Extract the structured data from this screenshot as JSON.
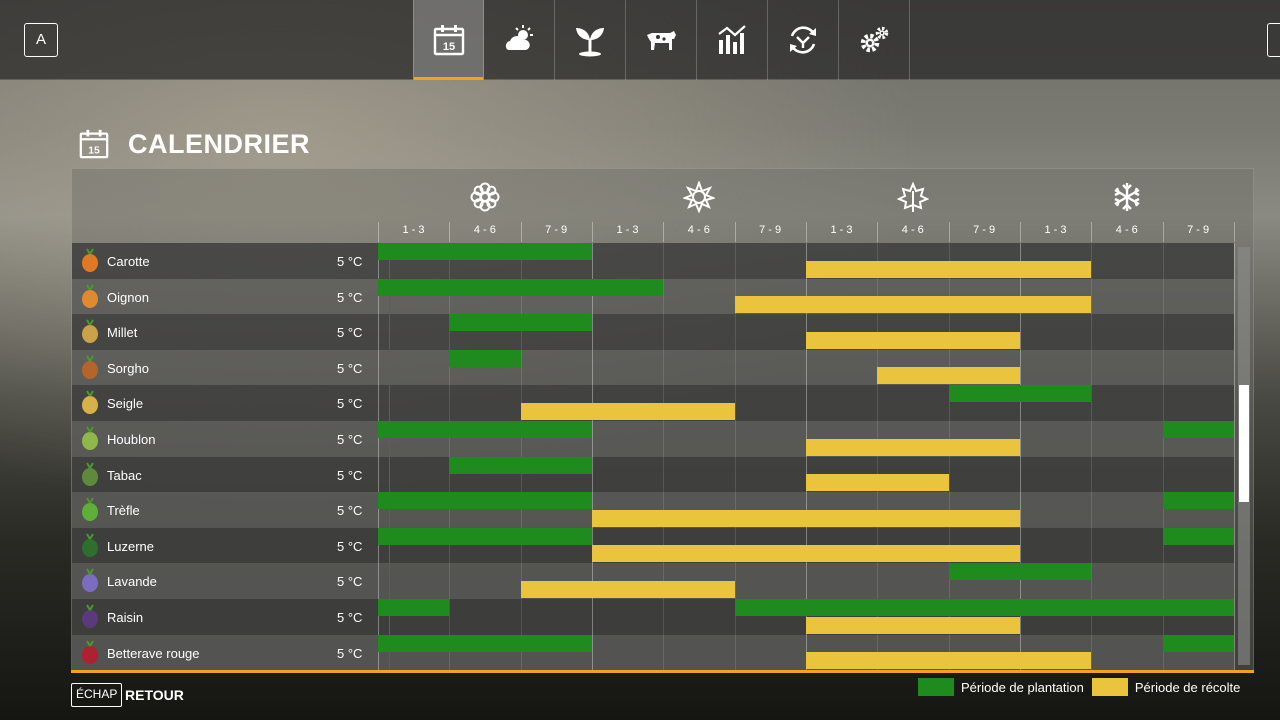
{
  "topbar": {
    "left_key": "A",
    "tabs": [
      {
        "icon": "calendar-icon",
        "active": true,
        "day": "15"
      },
      {
        "icon": "weather-icon",
        "active": false
      },
      {
        "icon": "seedling-icon",
        "active": false
      },
      {
        "icon": "cow-icon",
        "active": false
      },
      {
        "icon": "chart-icon",
        "active": false
      },
      {
        "icon": "cycle-icon",
        "active": false
      },
      {
        "icon": "gears-icon",
        "active": false
      }
    ]
  },
  "page": {
    "title": "CALENDRIER",
    "title_icon_day": "15"
  },
  "calendar": {
    "seasons": [
      "spring-flower-icon",
      "summer-sun-icon",
      "autumn-leaf-icon",
      "winter-snowflake-icon"
    ],
    "periods": [
      "1 - 3",
      "4 - 6",
      "7 - 9",
      "1 - 3",
      "4 - 6",
      "7 - 9",
      "1 - 3",
      "4 - 6",
      "7 - 9",
      "1 - 3",
      "4 - 6",
      "7 - 9"
    ],
    "current_period_fraction": 0.16,
    "crops": [
      {
        "name": "Carotte",
        "temp": "5 °C",
        "icon": "carrot-icon",
        "plant": [
          [
            1,
            3
          ]
        ],
        "harvest": [
          [
            7,
            10
          ]
        ]
      },
      {
        "name": "Oignon",
        "temp": "5 °C",
        "icon": "onion-icon",
        "plant": [
          [
            1,
            4
          ]
        ],
        "harvest": [
          [
            6,
            10
          ]
        ]
      },
      {
        "name": "Millet",
        "temp": "5 °C",
        "icon": "millet-icon",
        "plant": [
          [
            2,
            3
          ]
        ],
        "harvest": [
          [
            7,
            9
          ]
        ]
      },
      {
        "name": "Sorgho",
        "temp": "5 °C",
        "icon": "sorghum-icon",
        "plant": [
          [
            2,
            2
          ]
        ],
        "harvest": [
          [
            8,
            9
          ]
        ]
      },
      {
        "name": "Seigle",
        "temp": "5 °C",
        "icon": "rye-icon",
        "plant": [
          [
            9,
            10
          ]
        ],
        "harvest": [
          [
            3,
            5
          ]
        ]
      },
      {
        "name": "Houblon",
        "temp": "5 °C",
        "icon": "hops-icon",
        "plant": [
          [
            1,
            3
          ],
          [
            12,
            12
          ]
        ],
        "harvest": [
          [
            7,
            9
          ]
        ]
      },
      {
        "name": "Tabac",
        "temp": "5 °C",
        "icon": "tobacco-icon",
        "plant": [
          [
            2,
            3
          ]
        ],
        "harvest": [
          [
            7,
            8
          ]
        ]
      },
      {
        "name": "Trèfle",
        "temp": "5 °C",
        "icon": "clover-icon",
        "plant": [
          [
            1,
            3
          ],
          [
            12,
            12
          ]
        ],
        "harvest": [
          [
            4,
            9
          ]
        ]
      },
      {
        "name": "Luzerne",
        "temp": "5 °C",
        "icon": "alfalfa-icon",
        "plant": [
          [
            1,
            3
          ],
          [
            12,
            12
          ]
        ],
        "harvest": [
          [
            4,
            9
          ]
        ]
      },
      {
        "name": "Lavande",
        "temp": "5 °C",
        "icon": "lavender-icon",
        "plant": [
          [
            9,
            10
          ]
        ],
        "harvest": [
          [
            3,
            5
          ]
        ]
      },
      {
        "name": "Raisin",
        "temp": "5 °C",
        "icon": "grape-icon",
        "plant": [
          [
            1,
            1
          ],
          [
            6,
            12
          ]
        ],
        "harvest": [
          [
            7,
            9
          ]
        ]
      },
      {
        "name": "Betterave rouge",
        "temp": "5 °C",
        "icon": "beet-icon",
        "plant": [
          [
            1,
            3
          ],
          [
            12,
            12
          ]
        ],
        "harvest": [
          [
            7,
            10
          ]
        ]
      }
    ]
  },
  "footer": {
    "esc_key": "ÉCHAP",
    "back_label": "RETOUR",
    "legend": [
      {
        "label": "Période de plantation",
        "color": "#1f8b1f"
      },
      {
        "label": "Période de récolte",
        "color": "#ebc43e"
      }
    ]
  },
  "colors": {
    "accent": "#f2a21b",
    "plant": "#1f8b1f",
    "harvest": "#ebc43e",
    "today": "#d42a2a"
  },
  "scroll": {
    "position_fraction": 0.33,
    "visible_fraction": 0.28
  }
}
